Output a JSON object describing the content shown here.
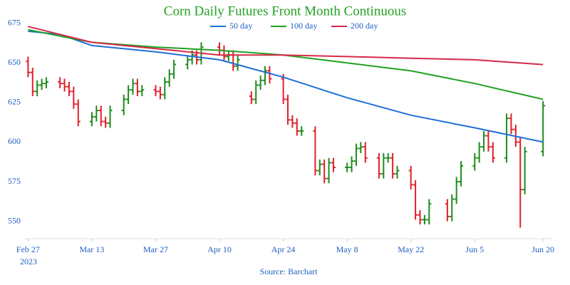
{
  "chart_data": {
    "type": "ohlc",
    "title": "Corn Daily Futures Front Month Continuous",
    "source": "Source: Barchart",
    "title_color": "#22a022",
    "up_color": "#1e8c1e",
    "down_color": "#e0202a",
    "x": [
      "2023-02-27",
      "2023-02-28",
      "2023-03-01",
      "2023-03-02",
      "2023-03-03",
      "2023-03-06",
      "2023-03-07",
      "2023-03-08",
      "2023-03-09",
      "2023-03-10",
      "2023-03-13",
      "2023-03-14",
      "2023-03-15",
      "2023-03-16",
      "2023-03-17",
      "2023-03-20",
      "2023-03-21",
      "2023-03-22",
      "2023-03-23",
      "2023-03-24",
      "2023-03-27",
      "2023-03-28",
      "2023-03-29",
      "2023-03-30",
      "2023-03-31",
      "2023-04-03",
      "2023-04-04",
      "2023-04-05",
      "2023-04-06",
      "2023-04-10",
      "2023-04-11",
      "2023-04-12",
      "2023-04-13",
      "2023-04-14",
      "2023-04-17",
      "2023-04-18",
      "2023-04-19",
      "2023-04-20",
      "2023-04-21",
      "2023-04-24",
      "2023-04-25",
      "2023-04-26",
      "2023-04-27",
      "2023-04-28",
      "2023-05-01",
      "2023-05-02",
      "2023-05-03",
      "2023-05-04",
      "2023-05-05",
      "2023-05-08",
      "2023-05-09",
      "2023-05-10",
      "2023-05-11",
      "2023-05-12",
      "2023-05-15",
      "2023-05-16",
      "2023-05-17",
      "2023-05-18",
      "2023-05-19",
      "2023-05-22",
      "2023-05-23",
      "2023-05-24",
      "2023-05-25",
      "2023-05-26",
      "2023-05-30",
      "2023-05-31",
      "2023-06-01",
      "2023-06-02",
      "2023-06-05",
      "2023-06-06",
      "2023-06-07",
      "2023-06-08",
      "2023-06-09",
      "2023-06-12",
      "2023-06-13",
      "2023-06-14",
      "2023-06-15",
      "2023-06-16",
      "2023-06-20"
    ],
    "open": [
      651,
      644,
      632,
      636,
      637,
      638,
      637,
      635,
      632,
      624,
      613,
      616,
      620,
      613,
      612,
      620,
      627,
      633,
      637,
      632,
      633,
      632,
      630,
      638,
      643,
      649,
      652,
      655,
      652,
      660,
      658,
      654,
      655,
      648,
      629,
      627,
      636,
      639,
      645,
      640,
      627,
      614,
      612,
      607,
      607,
      582,
      586,
      577,
      587,
      584,
      584,
      588,
      596,
      597,
      590,
      580,
      590,
      590,
      580,
      582,
      573,
      554,
      551,
      551,
      561,
      553,
      564,
      575,
      585,
      590,
      597,
      604,
      597,
      590,
      615,
      608,
      600,
      570,
      594
    ],
    "high": [
      654,
      647,
      639,
      640,
      641,
      641,
      640,
      638,
      635,
      627,
      619,
      623,
      623,
      616,
      623,
      630,
      636,
      640,
      640,
      636,
      636,
      635,
      641,
      646,
      652,
      655,
      658,
      658,
      663,
      663,
      661,
      658,
      658,
      655,
      632,
      639,
      642,
      648,
      648,
      643,
      630,
      617,
      615,
      610,
      610,
      589,
      589,
      590,
      590,
      587,
      591,
      599,
      600,
      600,
      593,
      593,
      593,
      593,
      585,
      585,
      576,
      557,
      554,
      564,
      564,
      567,
      578,
      588,
      593,
      600,
      607,
      607,
      600,
      618,
      618,
      611,
      603,
      597,
      626
    ],
    "low": [
      641,
      629,
      629,
      633,
      634,
      634,
      632,
      629,
      621,
      610,
      610,
      613,
      610,
      609,
      609,
      617,
      624,
      630,
      629,
      629,
      629,
      627,
      627,
      635,
      640,
      646,
      649,
      649,
      649,
      655,
      651,
      651,
      645,
      645,
      624,
      624,
      633,
      636,
      637,
      624,
      611,
      609,
      604,
      604,
      579,
      579,
      574,
      574,
      581,
      581,
      581,
      585,
      593,
      587,
      577,
      577,
      587,
      577,
      577,
      570,
      551,
      548,
      548,
      548,
      550,
      550,
      561,
      572,
      582,
      587,
      594,
      594,
      587,
      587,
      605,
      597,
      546,
      567,
      591
    ],
    "close": [
      644,
      632,
      636,
      637,
      638,
      637,
      635,
      632,
      624,
      613,
      616,
      620,
      613,
      612,
      620,
      627,
      633,
      637,
      632,
      633,
      632,
      630,
      638,
      643,
      649,
      652,
      655,
      652,
      660,
      658,
      654,
      655,
      648,
      652,
      627,
      636,
      639,
      645,
      640,
      627,
      614,
      612,
      607,
      607,
      582,
      586,
      577,
      587,
      584,
      584,
      588,
      596,
      597,
      590,
      580,
      590,
      590,
      580,
      582,
      573,
      554,
      551,
      551,
      561,
      553,
      564,
      575,
      585,
      590,
      597,
      604,
      597,
      590,
      615,
      608,
      600,
      570,
      594,
      623
    ],
    "moving_averages": {
      "x": [
        "2023-02-27",
        "2023-03-06",
        "2023-03-13",
        "2023-03-27",
        "2023-04-10",
        "2023-04-24",
        "2023-05-08",
        "2023-05-22",
        "2023-06-05",
        "2023-06-20"
      ],
      "series": [
        {
          "name": "50 day",
          "color": "#1f6fd8",
          "values": [
            670,
            668,
            661,
            657,
            652,
            641,
            628,
            617,
            609,
            600
          ]
        },
        {
          "name": "100 day",
          "color": "#22a022",
          "values": [
            671,
            667,
            663,
            660,
            658,
            655,
            650,
            645,
            637,
            627
          ]
        },
        {
          "name": "200 day",
          "color": "#d42a4a",
          "values": [
            673,
            668,
            663,
            659,
            655,
            655,
            654,
            653,
            652,
            649
          ]
        }
      ]
    },
    "xlim": [
      "2023-02-26",
      "2023-06-22"
    ],
    "xticks": [
      {
        "value": "2023-02-27",
        "label": "Feb 27"
      },
      {
        "value": "2023-03-13",
        "label": "Mar 13"
      },
      {
        "value": "2023-03-27",
        "label": "Mar 27"
      },
      {
        "value": "2023-04-10",
        "label": "Apr 10"
      },
      {
        "value": "2023-04-24",
        "label": "Apr 24"
      },
      {
        "value": "2023-05-08",
        "label": "May 8"
      },
      {
        "value": "2023-05-22",
        "label": "May 22"
      },
      {
        "value": "2023-06-05",
        "label": "Jun 5"
      },
      {
        "value": "2023-06-20",
        "label": "Jun 20"
      }
    ],
    "x_year_label": "2023",
    "ylim": [
      539,
      683
    ],
    "yticks": [
      550,
      575,
      600,
      625,
      650,
      675
    ],
    "axis_label_color": "#1f5fbf",
    "grid": false
  }
}
